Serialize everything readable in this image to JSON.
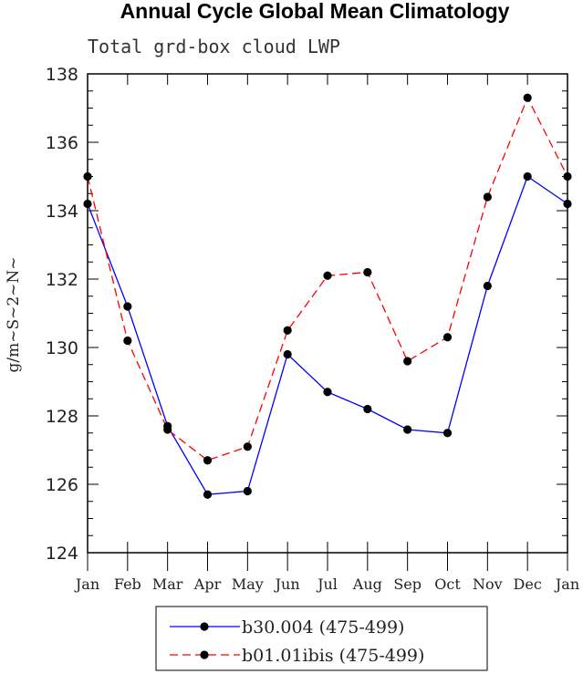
{
  "chart_data": {
    "type": "line",
    "title": "Annual Cycle Global Mean Climatology",
    "subtitle": "Total grd-box cloud LWP",
    "ylabel": "g/m~S~2~N~",
    "xlabel": "",
    "categories": [
      "Jan",
      "Feb",
      "Mar",
      "Apr",
      "May",
      "Jun",
      "Jul",
      "Aug",
      "Sep",
      "Oct",
      "Nov",
      "Dec",
      "Jan"
    ],
    "yticks": [
      "124",
      "126",
      "128",
      "130",
      "132",
      "134",
      "136",
      "138"
    ],
    "ylim": [
      124,
      138
    ],
    "grid": false,
    "legend_position": "bottom",
    "series": [
      {
        "name": "b30.004 (475-499)",
        "color": "#0000ff",
        "dash": "solid",
        "values": [
          134.2,
          131.2,
          127.7,
          125.7,
          125.8,
          129.8,
          128.7,
          128.2,
          127.6,
          127.5,
          131.8,
          135.0,
          134.2
        ]
      },
      {
        "name": "b01.01ibis (475-499)",
        "color": "#ff0000",
        "dash": "dashed",
        "values": [
          135.0,
          130.2,
          127.6,
          126.7,
          127.1,
          130.5,
          132.1,
          132.2,
          129.6,
          130.3,
          134.4,
          137.3,
          135.0
        ]
      }
    ]
  }
}
